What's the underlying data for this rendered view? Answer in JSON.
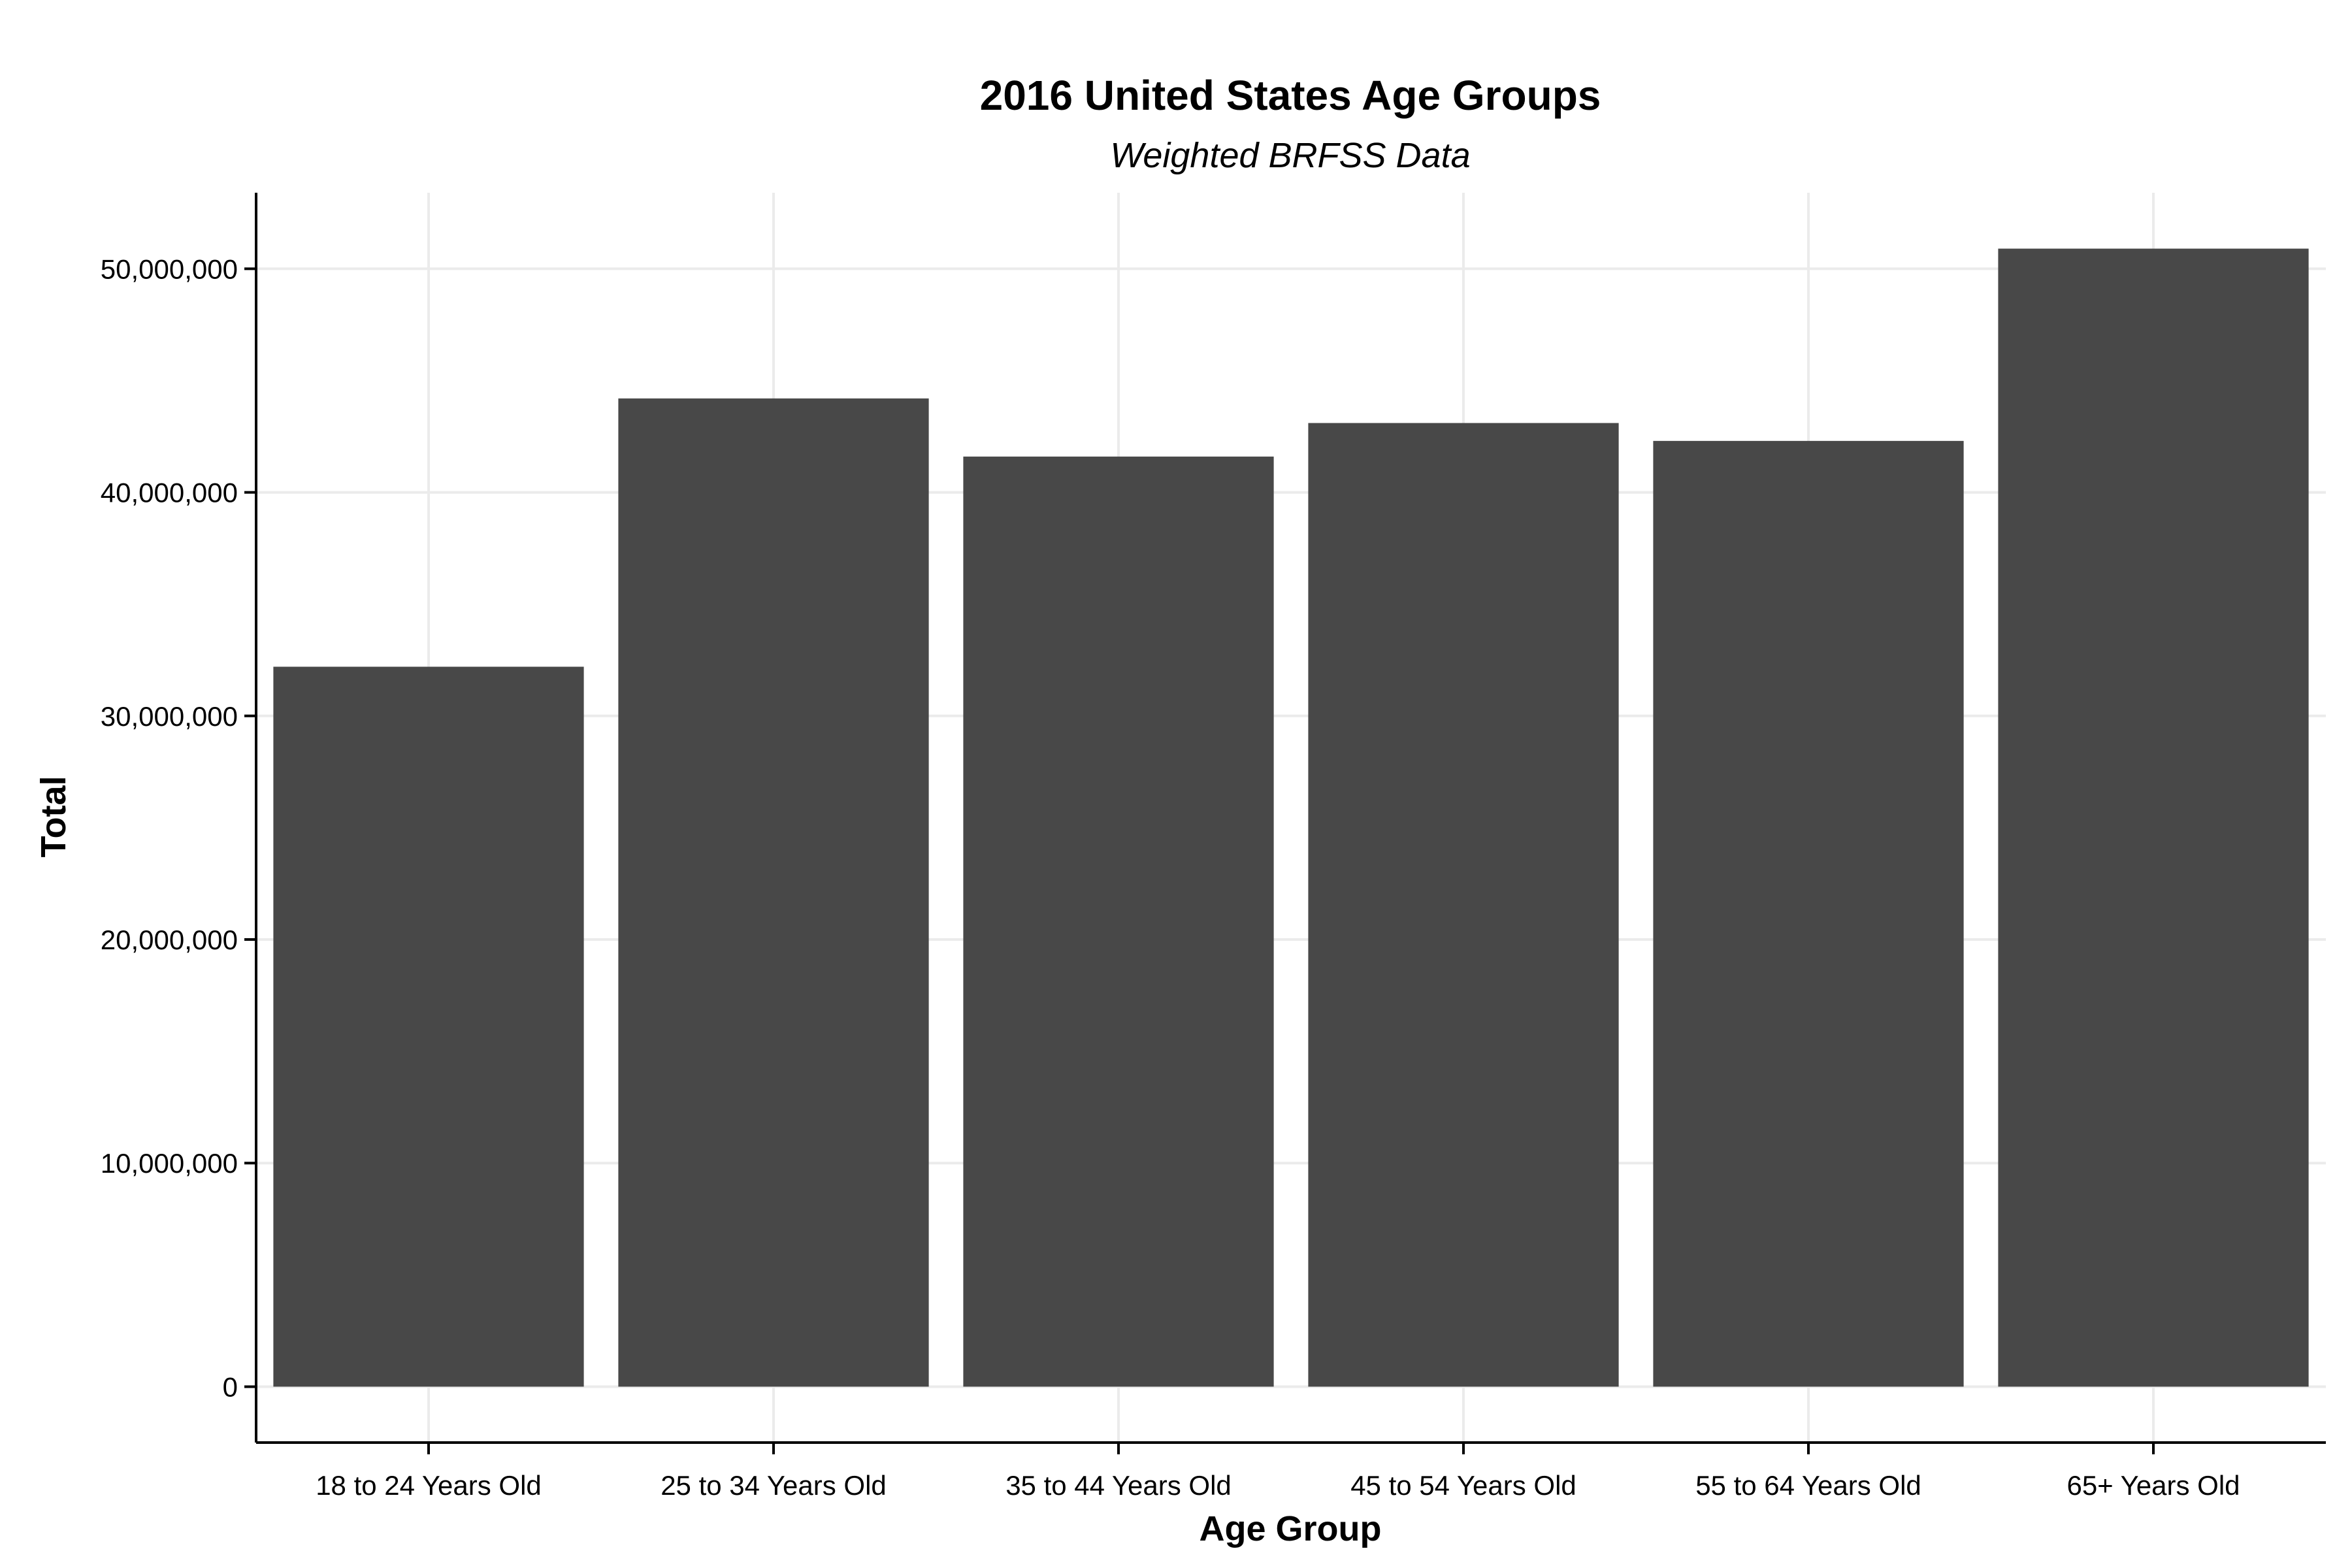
{
  "chart_data": {
    "type": "bar",
    "title": "2016 United States Age Groups",
    "subtitle": "Weighted BRFSS Data",
    "xlabel": "Age Group",
    "ylabel": "Total",
    "categories": [
      "18 to 24 Years Old",
      "25 to 34 Years Old",
      "35 to 44 Years Old",
      "45 to 54 Years Old",
      "55 to 64 Years Old",
      "65+ Years Old"
    ],
    "values": [
      32200000,
      44200000,
      41600000,
      43100000,
      42300000,
      50900000
    ],
    "ylim": [
      -2500000,
      53400000
    ],
    "yticks": [
      0,
      10000000,
      20000000,
      30000000,
      40000000,
      50000000
    ],
    "ytick_labels": [
      "0",
      "10,000,000",
      "20,000,000",
      "30,000,000",
      "40,000,000",
      "50,000,000"
    ],
    "bar_color": "#484848",
    "grid": true,
    "legend": "none"
  }
}
